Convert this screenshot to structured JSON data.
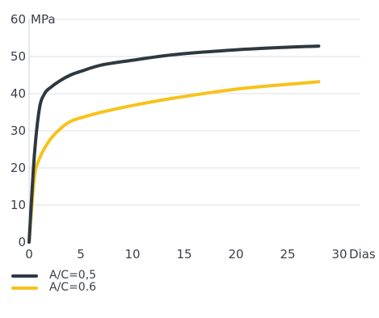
{
  "chart_data": {
    "type": "line",
    "title": "",
    "xlabel": "Dias",
    "ylabel": "MPa",
    "xlim": [
      0,
      30
    ],
    "ylim": [
      0,
      60
    ],
    "x_ticks": [
      "0",
      "5",
      "10",
      "15",
      "20",
      "25",
      "30"
    ],
    "y_ticks": [
      "0",
      "10",
      "20",
      "30",
      "40",
      "50",
      "60"
    ],
    "grid": "horizontal",
    "legend_position": "bottom-left",
    "series": [
      {
        "name": "A/C=0,5",
        "color": "#2e3840",
        "x": [
          0,
          0.5,
          1,
          1.5,
          2,
          3,
          4,
          5,
          7,
          10,
          14,
          20,
          25,
          28
        ],
        "y": [
          0,
          23,
          36,
          40,
          41.5,
          43.5,
          45,
          46,
          47.7,
          49,
          50.5,
          51.8,
          52.5,
          52.8
        ]
      },
      {
        "name": "A/C=0.6",
        "color": "#f7c21b",
        "x": [
          0,
          0.5,
          1,
          2,
          3,
          4,
          5,
          7,
          10,
          14,
          20,
          25,
          28
        ],
        "y": [
          0,
          17,
          22.5,
          27.5,
          30.5,
          32.5,
          33.5,
          35,
          36.8,
          38.8,
          41.2,
          42.5,
          43.2
        ]
      }
    ]
  }
}
